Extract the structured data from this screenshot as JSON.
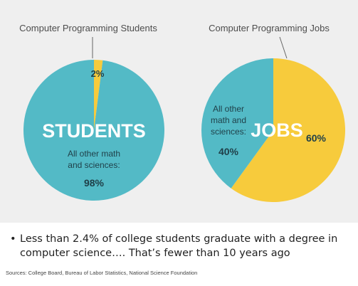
{
  "chart_data": [
    {
      "type": "pie",
      "title": "Computer Programming Students",
      "center_label": "STUDENTS",
      "slices": [
        {
          "label": "",
          "value": 2,
          "value_label": "2%",
          "color": "#f7cb3c"
        },
        {
          "label": "All other math and sciences:",
          "value": 98,
          "value_label": "98%",
          "color": "#53bac6"
        }
      ]
    },
    {
      "type": "pie",
      "title": "Computer Programming Jobs",
      "center_label": "JOBS",
      "slices": [
        {
          "label": "",
          "value": 60,
          "value_label": "60%",
          "color": "#f7cb3c"
        },
        {
          "label": "All other math and sciences:",
          "value": 40,
          "value_label": "40%",
          "color": "#53bac6"
        }
      ]
    }
  ],
  "caption": {
    "bullet": "•",
    "text": "Less than 2.4% of college students graduate with a degree in computer science…. That’s fewer than 10 years ago"
  },
  "sources": "Sources: College Board, Bureau of Labor Statistics, National Science Foundation"
}
